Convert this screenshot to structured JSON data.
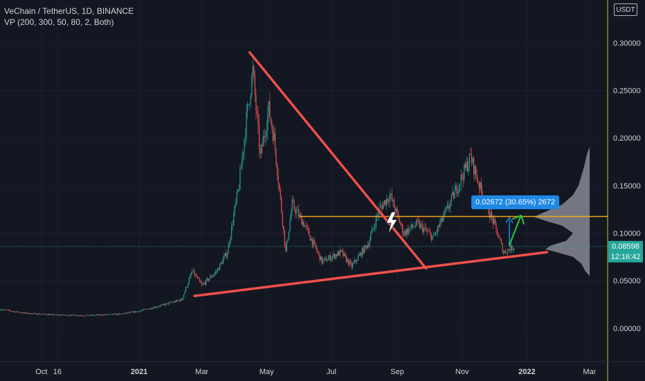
{
  "header": {
    "symbol_line": "VeChain / TetherUS, 1D, BINANCE",
    "indicator_line": "VP (200, 300, 50, 80, 2, Both)"
  },
  "toolbar": {
    "currency_label": "USDT"
  },
  "last_price": {
    "value": "0.08598",
    "countdown": "12:16:42",
    "color": "#26a69a"
  },
  "measure": {
    "label": "0.02672 (30.65%) 2672",
    "color": "#1e88e5"
  },
  "colors": {
    "background": "#131722",
    "up_candle": "#26a69a",
    "down_candle": "#ef5350",
    "trendline": "#f0504a",
    "level_line": "#f2a11d",
    "volume_profile": "#9598a1",
    "arrow": "#2ecc40",
    "axis_text": "#d1d4dc",
    "axis_line": "#c0ca33"
  },
  "chart_data": {
    "type": "candlestick",
    "yaxis": {
      "ylim": [
        -0.035,
        0.345
      ],
      "ticks": [
        0.0,
        0.05,
        0.1,
        0.15,
        0.2,
        0.25,
        0.3
      ],
      "tick_labels": [
        "0.00000",
        "0.05000",
        "0.10000",
        "0.15000",
        "0.20000",
        "0.25000",
        "0.30000"
      ],
      "label": ""
    },
    "xaxis": {
      "start": "2020-08-23",
      "end": "2022-03-18",
      "ticks": [
        {
          "date": "2020-10-01",
          "label": "Oct"
        },
        {
          "date": "2020-10-16",
          "label": "16"
        },
        {
          "date": "2021-01-01",
          "label": "2021"
        },
        {
          "date": "2021-03-01",
          "label": "Mar"
        },
        {
          "date": "2021-05-01",
          "label": "May"
        },
        {
          "date": "2021-07-01",
          "label": "Jul"
        },
        {
          "date": "2021-09-01",
          "label": "Sep"
        },
        {
          "date": "2021-11-01",
          "label": "Nov"
        },
        {
          "date": "2022-01-01",
          "label": "2022"
        },
        {
          "date": "2022-03-01",
          "label": "Mar"
        }
      ],
      "label": ""
    },
    "series_keypoints": [
      [
        "2020-08-23",
        0.02
      ],
      [
        "2020-09-15",
        0.016
      ],
      [
        "2020-10-15",
        0.014
      ],
      [
        "2020-11-15",
        0.0135
      ],
      [
        "2020-12-15",
        0.015
      ],
      [
        "2021-01-01",
        0.018
      ],
      [
        "2021-01-25",
        0.025
      ],
      [
        "2021-02-10",
        0.03
      ],
      [
        "2021-02-20",
        0.06
      ],
      [
        "2021-03-01",
        0.045
      ],
      [
        "2021-03-15",
        0.06
      ],
      [
        "2021-03-25",
        0.08
      ],
      [
        "2021-04-05",
        0.15
      ],
      [
        "2021-04-12",
        0.22
      ],
      [
        "2021-04-18",
        0.27
      ],
      [
        "2021-04-25",
        0.18
      ],
      [
        "2021-05-03",
        0.23
      ],
      [
        "2021-05-08",
        0.2
      ],
      [
        "2021-05-19",
        0.08
      ],
      [
        "2021-05-25",
        0.13
      ],
      [
        "2021-06-05",
        0.11
      ],
      [
        "2021-06-22",
        0.07
      ],
      [
        "2021-07-10",
        0.08
      ],
      [
        "2021-07-20",
        0.065
      ],
      [
        "2021-08-05",
        0.09
      ],
      [
        "2021-08-15",
        0.125
      ],
      [
        "2021-08-25",
        0.14
      ],
      [
        "2021-09-07",
        0.1
      ],
      [
        "2021-09-20",
        0.11
      ],
      [
        "2021-10-05",
        0.095
      ],
      [
        "2021-10-20",
        0.13
      ],
      [
        "2021-11-01",
        0.16
      ],
      [
        "2021-11-09",
        0.18
      ],
      [
        "2021-11-20",
        0.14
      ],
      [
        "2021-12-01",
        0.11
      ],
      [
        "2021-12-10",
        0.08
      ],
      [
        "2021-12-20",
        0.086
      ]
    ],
    "drawings": {
      "descending_trendline": [
        [
          "2021-04-15",
          0.29
        ],
        [
          "2021-09-28",
          0.063
        ]
      ],
      "ascending_trendline": [
        [
          "2021-02-22",
          0.034
        ],
        [
          "2022-01-20",
          0.08
        ]
      ],
      "horizontal_level": {
        "from": "2021-06-01",
        "to": "2022-03-18",
        "y": 0.1175
      },
      "last_price_line": 0.08598
    },
    "volume_profile": {
      "profile_points": [
        [
          0.19,
          0.0
        ],
        [
          0.185,
          0.04
        ],
        [
          0.17,
          0.1
        ],
        [
          0.15,
          0.2
        ],
        [
          0.14,
          0.3
        ],
        [
          0.13,
          0.5
        ],
        [
          0.125,
          0.7
        ],
        [
          0.12,
          0.9
        ],
        [
          0.117,
          1.0
        ],
        [
          0.113,
          0.8
        ],
        [
          0.108,
          0.5
        ],
        [
          0.1,
          0.3
        ],
        [
          0.092,
          0.42
        ],
        [
          0.087,
          0.7
        ],
        [
          0.083,
          0.8
        ],
        [
          0.08,
          0.6
        ],
        [
          0.075,
          0.3
        ],
        [
          0.068,
          0.15
        ],
        [
          0.06,
          0.08
        ],
        [
          0.055,
          0.0
        ]
      ]
    }
  }
}
